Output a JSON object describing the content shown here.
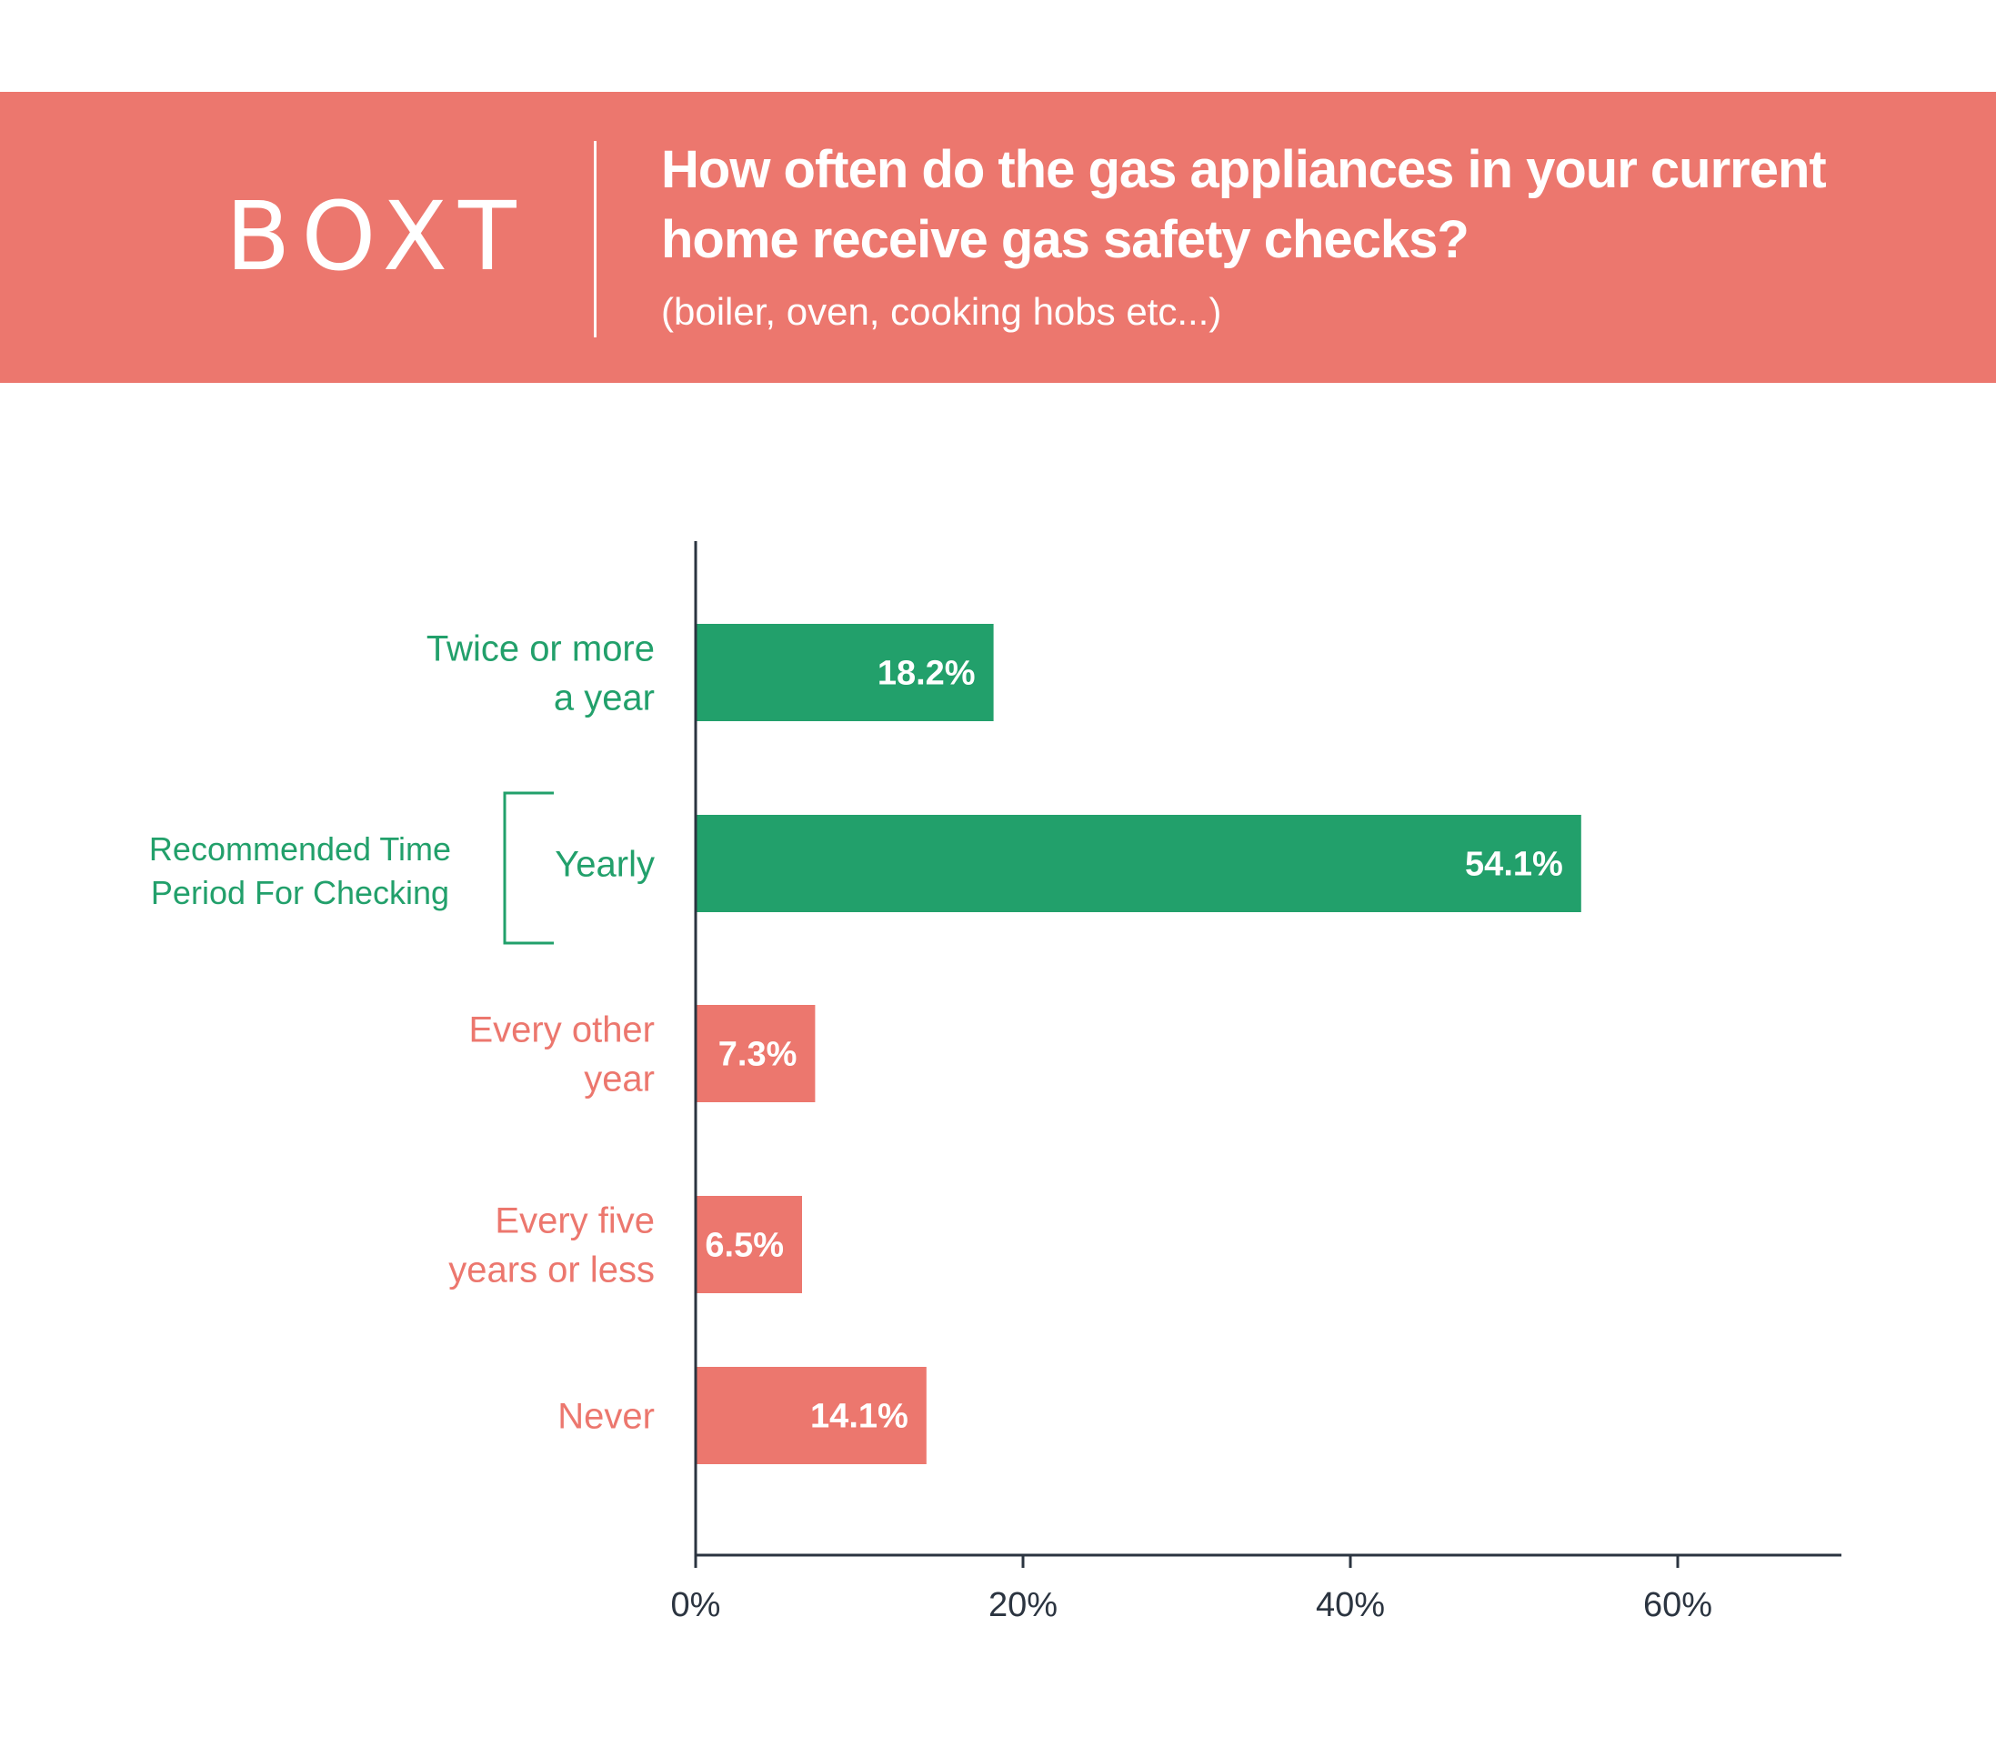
{
  "header": {
    "logo": "BOXT",
    "title": "How often do the gas appliances in your current home receive gas safety checks?",
    "subtitle": "(boiler, oven, cooking hobs etc...)"
  },
  "colors": {
    "banner": "#ec776e",
    "recommended": "#22a06b",
    "other": "#ec776e",
    "axis": "#2b3440",
    "text_white": "#ffffff"
  },
  "annotation": {
    "lines": [
      "Recommended Time",
      "Period For Checking"
    ],
    "applies_to": "Yearly"
  },
  "chart_data": {
    "type": "bar",
    "orientation": "horizontal",
    "categories": [
      [
        "Twice or more",
        "a year"
      ],
      [
        "Yearly"
      ],
      [
        "Every other",
        "year"
      ],
      [
        "Every five",
        "years or less"
      ],
      [
        "Never"
      ]
    ],
    "values": [
      18.2,
      54.1,
      7.3,
      6.5,
      14.1
    ],
    "data_labels": [
      "18.2%",
      "54.1%",
      "7.3%",
      "6.5%",
      "14.1%"
    ],
    "bar_colors": [
      "recommended",
      "recommended",
      "other",
      "other",
      "other"
    ],
    "xticks": [
      "0%",
      "20%",
      "40%",
      "60%"
    ],
    "xtick_values": [
      0,
      20,
      40,
      60
    ],
    "xlim": [
      0,
      70
    ],
    "grid": false,
    "legend": "none"
  }
}
